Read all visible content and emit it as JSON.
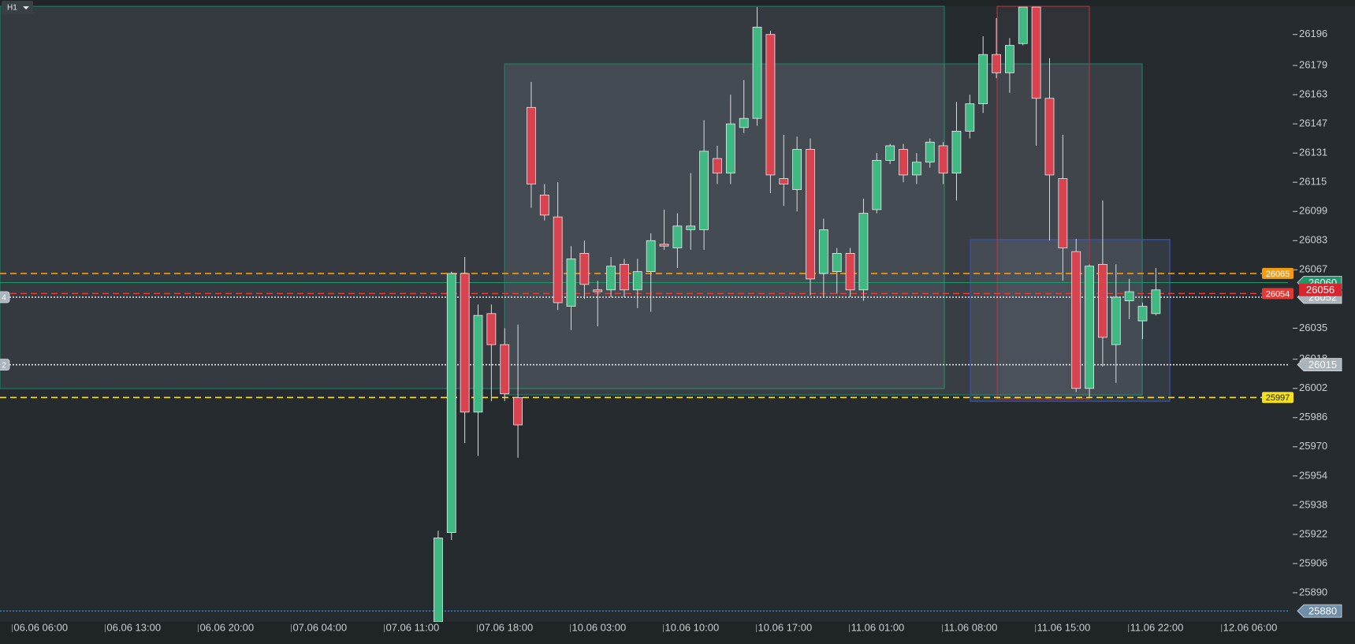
{
  "toolbar": {
    "timeframe": "H1"
  },
  "chart_data": {
    "type": "candlestick",
    "categories": [
      "06.06 06:00",
      null,
      null,
      null,
      null,
      null,
      null,
      "06.06 13:00",
      null,
      null,
      null,
      null,
      null,
      null,
      "06.06 20:00",
      null,
      null,
      null,
      null,
      null,
      null,
      "07.06 04:00",
      null,
      null,
      null,
      null,
      null,
      null,
      "07.06 11:00",
      null,
      null,
      null,
      null,
      null,
      null,
      "07.06 18:00",
      null,
      null,
      null,
      null,
      null,
      null,
      "10.06 03:00",
      null,
      null,
      null,
      null,
      null,
      null,
      "10.06 10:00",
      null,
      null,
      null,
      null,
      null,
      null,
      "10.06 17:00",
      null,
      null,
      null,
      null,
      null,
      null,
      "11.06 01:00",
      null,
      null,
      null,
      null,
      null,
      null,
      "11.06 08:00",
      null,
      null,
      null,
      null,
      null,
      null,
      "11.06 15:00",
      null,
      null,
      null,
      null,
      null,
      null,
      "11.06 22:00",
      null,
      null,
      null,
      null,
      null,
      null,
      "12.06 06:00"
    ],
    "open": [
      null,
      null,
      null,
      null,
      null,
      null,
      null,
      null,
      null,
      null,
      null,
      null,
      null,
      null,
      null,
      null,
      null,
      null,
      null,
      null,
      null,
      null,
      null,
      null,
      null,
      null,
      null,
      null,
      null,
      null,
      null,
      null,
      25874,
      25923,
      26065,
      25989,
      26043,
      26026,
      25997,
      26156,
      26108,
      26096,
      26047,
      26076,
      26056,
      26056,
      26070,
      26056,
      26066,
      26081,
      26079,
      26089,
      26089,
      26128,
      26120,
      26145,
      26150,
      26196,
      26117,
      26111,
      26133,
      26065,
      26066,
      26076,
      26056,
      26100,
      26127,
      26133,
      26119,
      26126,
      26135,
      26120,
      26143,
      26158,
      26185,
      26175,
      26191,
      26211,
      26161,
      26117,
      26077,
      26002,
      26070,
      26026,
      26050,
      26039,
      26043,
      null,
      null,
      null,
      null,
      null
    ],
    "high": [
      null,
      null,
      null,
      null,
      null,
      null,
      null,
      null,
      null,
      null,
      null,
      null,
      null,
      null,
      null,
      null,
      null,
      null,
      null,
      null,
      null,
      null,
      null,
      null,
      null,
      null,
      null,
      null,
      null,
      null,
      null,
      null,
      25924,
      26066,
      26074,
      26048,
      26048,
      26035,
      26037,
      26170,
      26114,
      26115,
      26080,
      26083,
      26061,
      26074,
      26073,
      26073,
      26087,
      26100,
      26098,
      26120,
      26149,
      26135,
      26163,
      26171,
      26211,
      26198,
      26141,
      26140,
      26139,
      26095,
      26079,
      26079,
      26106,
      26131,
      26136,
      26136,
      26131,
      26139,
      26137,
      26159,
      26163,
      26195,
      26205,
      26194,
      26211,
      26211,
      26183,
      26141,
      26084,
      26070,
      26105,
      26070,
      26062,
      26049,
      26068,
      null,
      null,
      null,
      null,
      null
    ],
    "low": [
      null,
      null,
      null,
      null,
      null,
      null,
      null,
      null,
      null,
      null,
      null,
      null,
      null,
      null,
      null,
      null,
      null,
      null,
      null,
      null,
      null,
      null,
      null,
      null,
      null,
      null,
      null,
      null,
      null,
      null,
      null,
      null,
      25874,
      25919,
      25972,
      25965,
      25995,
      25995,
      25964,
      26101,
      26094,
      26045,
      26034,
      26051,
      26036,
      26052,
      26052,
      26046,
      26044,
      26078,
      26068,
      26078,
      26078,
      26114,
      26114,
      26142,
      26146,
      26109,
      26102,
      26099,
      26053,
      26052,
      26054,
      26052,
      26050,
      26098,
      26125,
      26115,
      26114,
      26123,
      26114,
      26105,
      26139,
      26153,
      26172,
      26164,
      26190,
      26135,
      26083,
      26061,
      26000,
      25997,
      26014,
      26005,
      26040,
      26029,
      26042,
      null,
      null,
      null,
      null,
      null
    ],
    "close": [
      null,
      null,
      null,
      null,
      null,
      null,
      null,
      null,
      null,
      null,
      null,
      null,
      null,
      null,
      null,
      null,
      null,
      null,
      null,
      null,
      null,
      null,
      null,
      null,
      null,
      null,
      null,
      null,
      null,
      null,
      null,
      null,
      25920,
      26065,
      25989,
      26042,
      26026,
      25999,
      25982,
      26114,
      26097,
      26049,
      26073,
      26059,
      26055,
      26069,
      26056,
      26066,
      26083,
      26080,
      26091,
      26091,
      26132,
      26120,
      26147,
      26150,
      26200,
      26119,
      26114,
      26133,
      26062,
      26089,
      26076,
      26056,
      26098,
      26127,
      26135,
      26119,
      26126,
      26137,
      26120,
      26143,
      26158,
      26185,
      26175,
      26190,
      26211,
      26161,
      26119,
      26079,
      26002,
      26069,
      26030,
      26052,
      26055,
      26047,
      26056,
      null,
      null,
      null,
      null,
      null
    ],
    "up_color": "#3fb882",
    "down_color": "#d9434f",
    "ylim": [
      25874,
      26211
    ],
    "yticks": [
      26196,
      26179,
      26163,
      26147,
      26131,
      26115,
      26099,
      26083,
      26067,
      26035,
      26018,
      26002,
      25986,
      25970,
      25954,
      25938,
      25922,
      25906,
      25890
    ],
    "levels": [
      {
        "value": 26065,
        "color": "#f39c12",
        "style": "dashed",
        "tag": "plot"
      },
      {
        "value": 26060,
        "color": "#1d9a6c",
        "style": "solid",
        "tag": "axis"
      },
      {
        "value": 26054,
        "color": "#e53935",
        "style": "dashed",
        "tag": "plot"
      },
      {
        "value": 26052,
        "color": "#e0e4e8",
        "style": "dotted",
        "tag": "axis",
        "count": 4
      },
      {
        "value": 26015,
        "color": "#e0e4e8",
        "style": "dotted",
        "tag": "axis",
        "count": 2
      },
      {
        "value": 25997,
        "color": "#f5e11b",
        "style": "dashed",
        "tag": "plot"
      },
      {
        "value": 25880,
        "color": "#2f7fd0",
        "style": "dotted",
        "tag": "axis"
      }
    ],
    "last_price_color": "#d7262f"
  }
}
